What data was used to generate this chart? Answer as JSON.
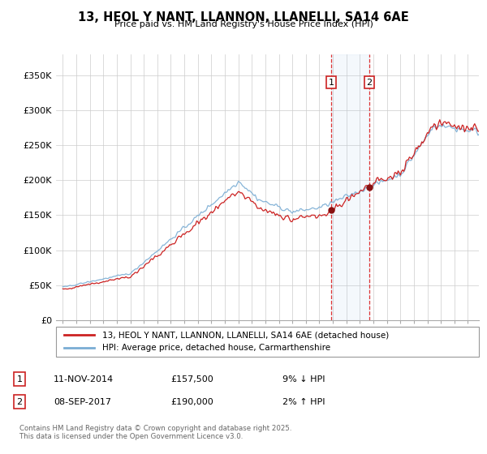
{
  "title": "13, HEOL Y NANT, LLANNON, LLANELLI, SA14 6AE",
  "subtitle": "Price paid vs. HM Land Registry's House Price Index (HPI)",
  "legend_line1": "13, HEOL Y NANT, LLANNON, LLANELLI, SA14 6AE (detached house)",
  "legend_line2": "HPI: Average price, detached house, Carmarthenshire",
  "transaction1_date": "11-NOV-2014",
  "transaction1_price": "£157,500",
  "transaction1_hpi": "9% ↓ HPI",
  "transaction2_date": "08-SEP-2017",
  "transaction2_price": "£190,000",
  "transaction2_hpi": "2% ↑ HPI",
  "footnote": "Contains HM Land Registry data © Crown copyright and database right 2025.\nThis data is licensed under the Open Government Licence v3.0.",
  "ylim": [
    0,
    380000
  ],
  "yticks": [
    0,
    50000,
    100000,
    150000,
    200000,
    250000,
    300000,
    350000
  ],
  "ytick_labels": [
    "£0",
    "£50K",
    "£100K",
    "£150K",
    "£200K",
    "£250K",
    "£300K",
    "£350K"
  ],
  "hpi_color": "#7aadd4",
  "price_color": "#cc2222",
  "marker1_x": 2014.87,
  "marker1_y": 157500,
  "marker2_x": 2017.69,
  "marker2_y": 190000,
  "shade_x1": 2014.87,
  "shade_x2": 2017.69,
  "xlim_left": 1994.5,
  "xlim_right": 2025.8
}
